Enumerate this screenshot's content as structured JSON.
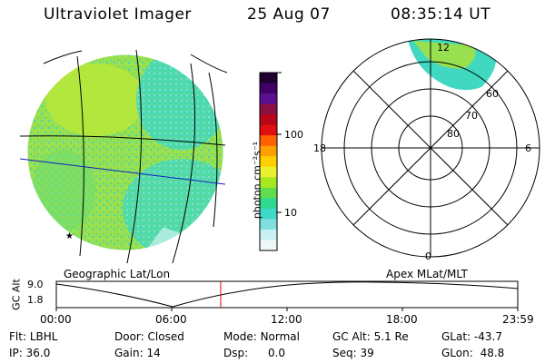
{
  "header": {
    "instrument": "Ultraviolet Imager",
    "date": "25 Aug 07",
    "time": "08:35:14 UT"
  },
  "colorbar": {
    "unit_label": "photon cm⁻²s⁻¹",
    "ticks": [
      "100",
      "10"
    ],
    "colors": [
      "#200030",
      "#40006a",
      "#5a1090",
      "#8a1040",
      "#b80818",
      "#e01010",
      "#ff6000",
      "#ffa000",
      "#ffd000",
      "#e8f030",
      "#a8e820",
      "#60dc50",
      "#30d890",
      "#40d8c8",
      "#80e0e0",
      "#c8f0f0",
      "#eef8f8"
    ]
  },
  "left_panel": {
    "caption": "Geographic Lat/Lon",
    "glyph": "★"
  },
  "right_panel": {
    "caption": "Apex MLat/MLT",
    "mlt_top": "12",
    "mlt_left": "18",
    "mlt_right": "6",
    "mlt_bottom": "0",
    "lat_rings": [
      "80",
      "70",
      "60"
    ]
  },
  "timeline": {
    "ylabel": "GC Alt",
    "y_ticks": [
      "9.0",
      "1.8"
    ],
    "x_ticks": [
      "00:00",
      "06:00",
      "12:00",
      "18:00",
      "23:59"
    ],
    "marker_color": "#e00000"
  },
  "status": {
    "flt_label": "Flt:",
    "flt_value": "LBHL",
    "door_label": "Door:",
    "door_value": "Closed",
    "mode_label": "Mode:",
    "mode_value": "Normal",
    "gcalt_label": "GC Alt:",
    "gcalt_value": "5.1 Re",
    "glat_label": "GLat:",
    "glat_value": "-43.7",
    "ip_label": "IP:",
    "ip_value": "36.0",
    "gain_label": "Gain:",
    "gain_value": "14",
    "dsp_label": "Dsp:",
    "dsp_value": "0.0",
    "seq_label": "Seq:",
    "seq_value": "39",
    "glon_label": "GLon:",
    "glon_value": "48.8"
  }
}
